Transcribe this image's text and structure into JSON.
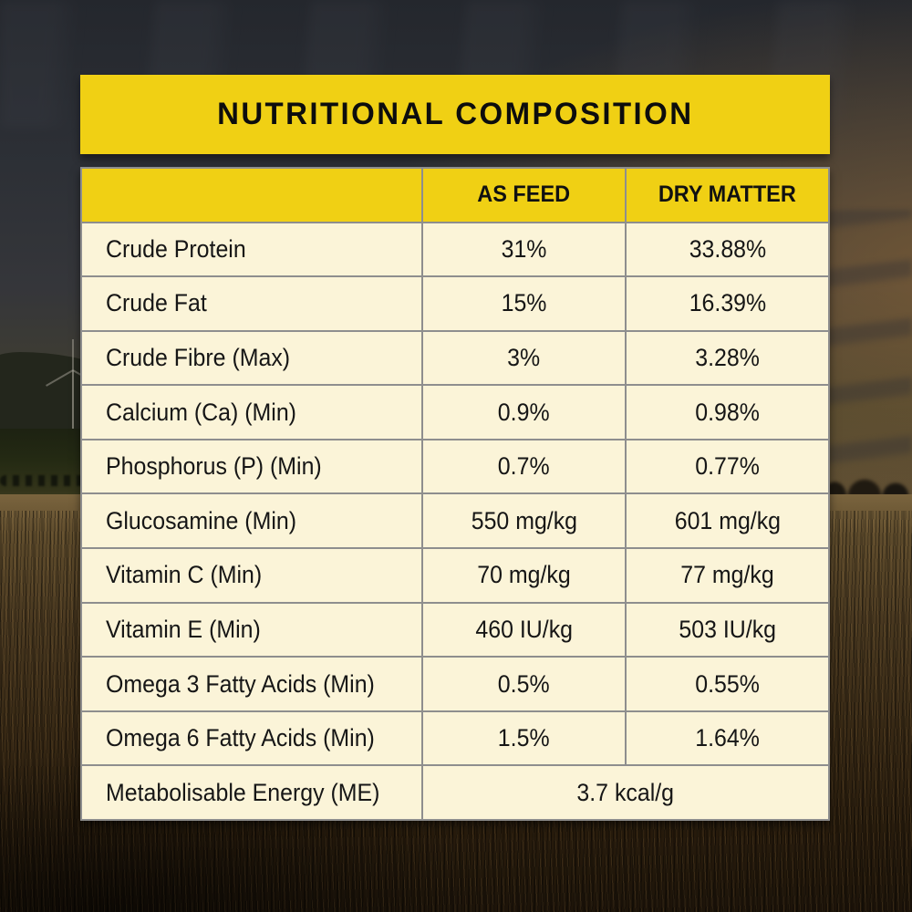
{
  "page": {
    "title": "NUTRITIONAL COMPOSITION"
  },
  "table": {
    "header": {
      "col1": "",
      "col2": "AS FEED",
      "col3": "DRY MATTER"
    },
    "rows": [
      {
        "label": "Crude Protein",
        "as_feed": "31%",
        "dry_matter": "33.88%"
      },
      {
        "label": "Crude Fat",
        "as_feed": "15%",
        "dry_matter": "16.39%"
      },
      {
        "label": "Crude Fibre (Max)",
        "as_feed": "3%",
        "dry_matter": "3.28%"
      },
      {
        "label": "Calcium (Ca) (Min)",
        "as_feed": "0.9%",
        "dry_matter": "0.98%"
      },
      {
        "label": "Phosphorus (P) (Min)",
        "as_feed": "0.7%",
        "dry_matter": "0.77%"
      },
      {
        "label": "Glucosamine (Min)",
        "as_feed": "550 mg/kg",
        "dry_matter": "601 mg/kg"
      },
      {
        "label": "Vitamin C (Min)",
        "as_feed": "70 mg/kg",
        "dry_matter": "77 mg/kg"
      },
      {
        "label": "Vitamin E (Min)",
        "as_feed": "460 IU/kg",
        "dry_matter": "503 IU/kg"
      },
      {
        "label": "Omega 3 Fatty Acids (Min)",
        "as_feed": "0.5%",
        "dry_matter": "0.55%"
      },
      {
        "label": "Omega 6 Fatty Acids (Min)",
        "as_feed": "1.5%",
        "dry_matter": "1.64%"
      }
    ],
    "span_row": {
      "label": "Metabolisable Energy (ME)",
      "value": "3.7 kcal/g"
    }
  },
  "colors": {
    "brand_yellow": "#F0D014",
    "cell_cream": "#FBF4D8",
    "grid_gray": "#8E8E8E",
    "text_black": "#111111"
  }
}
